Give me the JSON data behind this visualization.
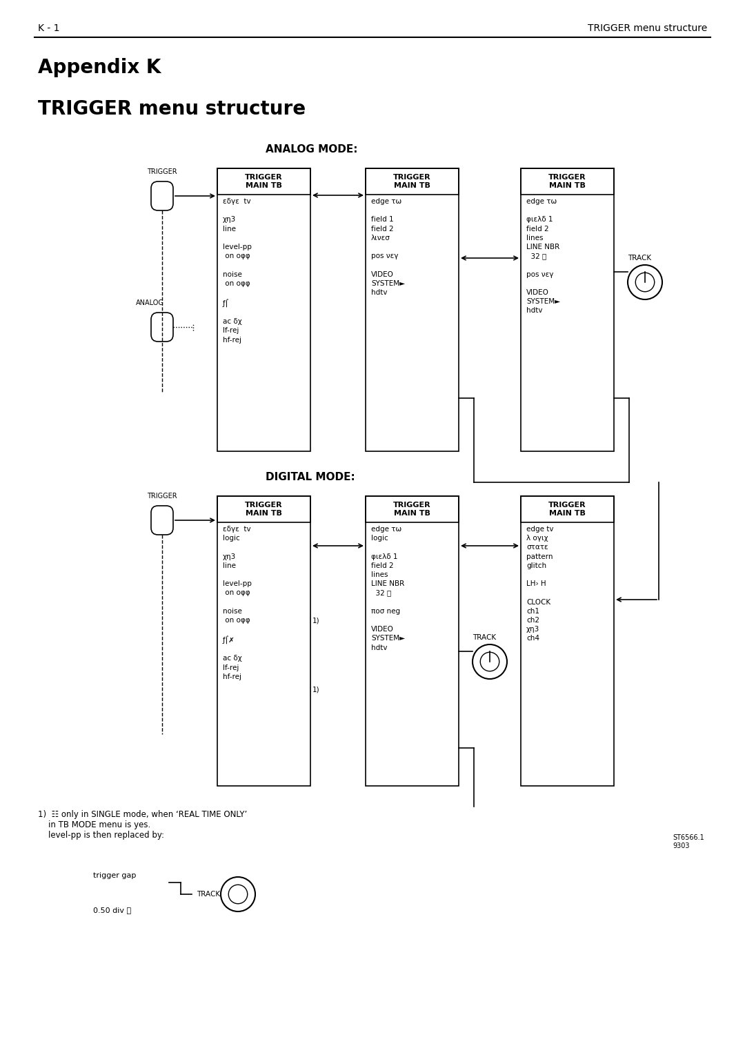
{
  "page_header_left": "K - 1",
  "page_header_right": "TRIGGER menu structure",
  "title_line1": "Appendix K",
  "title_line2": "TRIGGER menu structure",
  "bg_color": "#ffffff",
  "text_color": "#000000",
  "analog_mode_label": "ANALOG MODE:",
  "digital_mode_label": "DIGITAL MODE:",
  "analog_trigger_label": "TRIGGER",
  "analog_label": "ANALOG",
  "digital_trigger_label": "TRIGGER",
  "box1_header": "TRIGGER\nMAIN TB",
  "box1_content": "εδγε  tv\n\nχη3\nline\n\nlevel-pp\n on oφφ\n\nnoise\n on oφφ\n\nƒ⌠\n\nac δχ\nlf-rej\nhf-rej",
  "box2_header": "TRIGGER\nMAIN TB",
  "box2_content": "edge τω\n\nfield 1\nfield 2\nλινεσ\n\npos νεγ\n\nVIDEO\nSYSTEM►\nhdtv",
  "box3_header": "TRIGGER\nMAIN TB",
  "box3_content": "edge τω\n\nφιελδ 1\nfield 2\nlines\nLINE NBR\n  32 Ⓣ\n\npos νεγ\n\nVIDEO\nSYSTEM►\nhdtv",
  "box4_header": "TRIGGER\nMAIN TB",
  "box4_content": "εδγε  tv\nlogic\n\nχη3\nline\n\nlevel-pp\n on oφφ\n\nnoise\n on oφφ\n\nƒ⌠✗\n\nac δχ\nlf-rej\nhf-rej",
  "box5_header": "TRIGGER\nMAIN TB",
  "box5_content": "edge τω\nlogic\n\nφιελδ 1\nfield 2\nlines\nLINE NBR\n  32 Ⓣ\n\nπoσ neg\n\nVIDEO\nSYSTEM►\nhdtv",
  "box6_header": "TRIGGER\nMAIN TB",
  "box6_content": "edge tv\nλ oγιχ\nστατε\npattern\nglitch\n\nLH› H\n\nCLOCK\nch1\nch2\nχη3\nch4",
  "track_label": "TRACK",
  "footnote": "1)  ☷ only in SINGLE mode, when ‘REAL TIME ONLY’\n    in TB MODE menu is yes.\n    level-pp is then replaced by:",
  "footnote2": "trigger gap\n0.50 div Ⓣ",
  "track_label2": "TRACK",
  "st_label": "ST6566.1\n9303"
}
